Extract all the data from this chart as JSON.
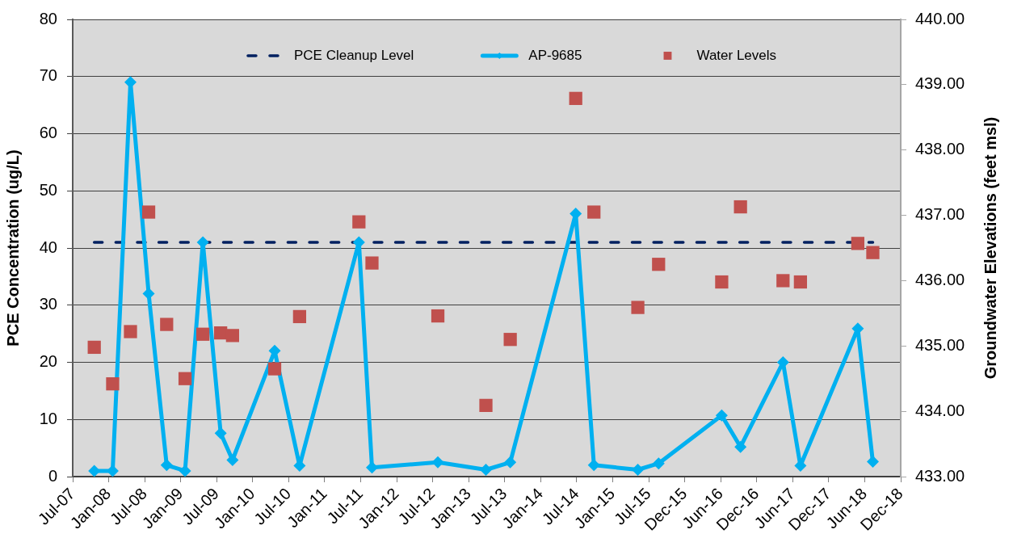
{
  "chart_data": {
    "type": "line",
    "ylabel": "PCE Concentration (ug/L)",
    "y2label": "Groundwater Elevations (feet msl)",
    "x": [
      "2007-10-29",
      "2008-01-30",
      "2008-04-29",
      "2008-07-30",
      "2008-10-29",
      "2009-01-30",
      "2009-04-30",
      "2009-07-29",
      "2009-09-27",
      "2010-04-28",
      "2010-09-01",
      "2011-06-28",
      "2011-09-02",
      "2012-07-31",
      "2013-03-31",
      "2013-08-01",
      "2014-06-28",
      "2014-09-28",
      "2015-05-08",
      "2015-08-21",
      "2016-07-05",
      "2016-10-08",
      "2017-05-11",
      "2017-08-07",
      "2018-05-24",
      "2018-08-08"
    ],
    "xlim": [
      "2007-07-12",
      "2018-12-27"
    ],
    "xticks": [
      {
        "value": "2007-07-12",
        "label": "Jul-07"
      },
      {
        "value": "2008-01-10",
        "label": "Jan-08"
      },
      {
        "value": "2008-07-10",
        "label": "Jul-08"
      },
      {
        "value": "2009-01-08",
        "label": "Jan-09"
      },
      {
        "value": "2009-07-09",
        "label": "Jul-09"
      },
      {
        "value": "2010-01-07",
        "label": "Jan-10"
      },
      {
        "value": "2010-07-08",
        "label": "Jul-10"
      },
      {
        "value": "2011-01-06",
        "label": "Jan-11"
      },
      {
        "value": "2011-07-07",
        "label": "Jul-11"
      },
      {
        "value": "2012-01-05",
        "label": "Jan-12"
      },
      {
        "value": "2012-07-05",
        "label": "Jul-12"
      },
      {
        "value": "2013-01-03",
        "label": "Jan-13"
      },
      {
        "value": "2013-07-04",
        "label": "Jul-13"
      },
      {
        "value": "2014-01-02",
        "label": "Jan-14"
      },
      {
        "value": "2014-07-03",
        "label": "Jul-14"
      },
      {
        "value": "2015-01-01",
        "label": "Jan-15"
      },
      {
        "value": "2015-07-02",
        "label": "Jul-15"
      },
      {
        "value": "2015-12-31",
        "label": "Dec-15"
      },
      {
        "value": "2016-06-30",
        "label": "Jun-16"
      },
      {
        "value": "2016-12-29",
        "label": "Dec-16"
      },
      {
        "value": "2017-06-29",
        "label": "Jun-17"
      },
      {
        "value": "2017-12-28",
        "label": "Dec-17"
      },
      {
        "value": "2018-06-28",
        "label": "Jun-18"
      },
      {
        "value": "2018-12-27",
        "label": "Dec-18"
      }
    ],
    "ylim": [
      0,
      80
    ],
    "yticks": [
      0,
      10,
      20,
      30,
      40,
      50,
      60,
      70,
      80
    ],
    "y2lim": [
      433,
      440
    ],
    "y2ticks": [
      {
        "value": 433,
        "label": "433.00"
      },
      {
        "value": 434,
        "label": "434.00"
      },
      {
        "value": 435,
        "label": "435.00"
      },
      {
        "value": 436,
        "label": "436.00"
      },
      {
        "value": 437,
        "label": "437.00"
      },
      {
        "value": 438,
        "label": "438.00"
      },
      {
        "value": 439,
        "label": "439.00"
      },
      {
        "value": 440,
        "label": "440.00"
      }
    ],
    "series": [
      {
        "name": "PCE Cleanup Level",
        "color": "#002060",
        "line_style": "dashed",
        "marker": "none",
        "values": [
          41,
          41,
          41,
          41,
          41,
          41,
          41,
          41,
          41,
          41,
          41,
          41,
          41,
          41,
          41,
          41,
          41,
          41,
          41,
          41,
          41,
          41,
          41,
          41,
          41,
          41
        ]
      },
      {
        "name": "AP-9685",
        "color": "#00b0f0",
        "marker": "diamond",
        "values": [
          1,
          1,
          69,
          32,
          2,
          1,
          41,
          7.6,
          2.9,
          22,
          1.9,
          41,
          1.6,
          2.5,
          1.2,
          2.5,
          46,
          2,
          1.2,
          2.3,
          10.7,
          5.2,
          20,
          1.9,
          25.9,
          2.6
        ]
      },
      {
        "name": "Water Levels",
        "type": "scatter",
        "axis": "y2",
        "color": "#c0504d",
        "marker": "square",
        "values": [
          434.98,
          434.42,
          435.22,
          437.05,
          435.33,
          434.5,
          435.18,
          435.2,
          435.16,
          434.65,
          435.45,
          436.9,
          436.27,
          435.46,
          434.09,
          435.1,
          438.79,
          437.05,
          435.59,
          436.25,
          435.98,
          437.13,
          436,
          435.98,
          436.57,
          436.43
        ]
      }
    ],
    "grid": "y",
    "legend": "top"
  }
}
